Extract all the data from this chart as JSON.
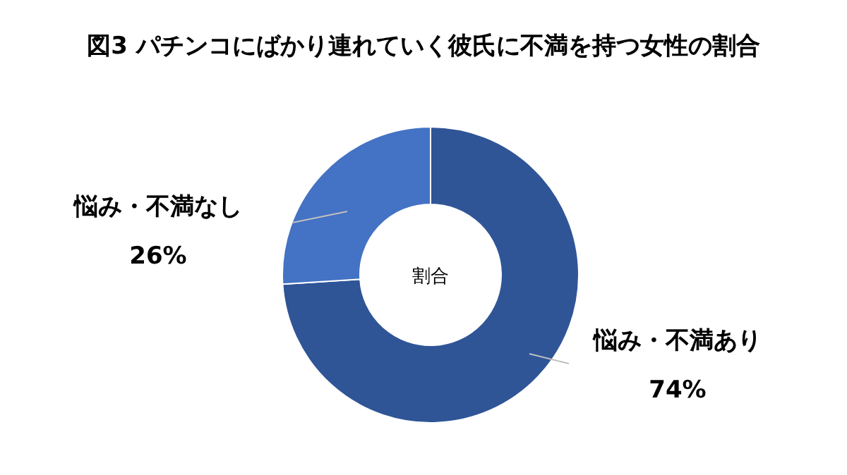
{
  "chart_data": {
    "type": "donut",
    "title": "図3 パチンコにばかり連れていく彼氏に不満を持つ女性の割合",
    "categories": [
      "悩み・不満あり",
      "悩み・不満なし"
    ],
    "values": [
      74,
      26
    ],
    "colors": [
      "#2f5597",
      "#4472c4"
    ],
    "value_labels": [
      "74%",
      "26%"
    ],
    "annotations": [
      "割合"
    ]
  }
}
